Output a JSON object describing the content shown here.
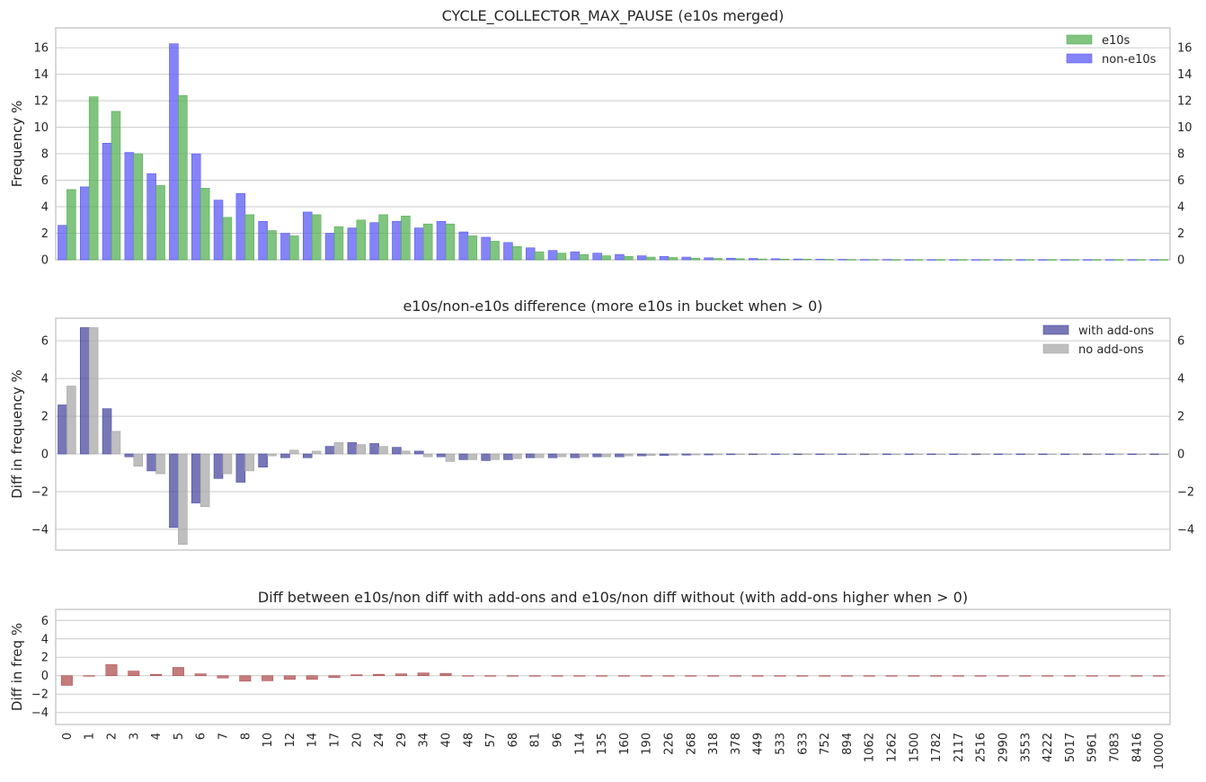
{
  "chart_data": [
    {
      "type": "bar",
      "title": "CYCLE_COLLECTOR_MAX_PAUSE (e10s merged)",
      "xlabel": "",
      "ylabel": "Frequency %",
      "ylim": [
        0,
        17.5
      ],
      "yticks": [
        0,
        2,
        4,
        6,
        8,
        10,
        12,
        14,
        16
      ],
      "grid": true,
      "legend": "top-right",
      "categories": [
        "0",
        "1",
        "2",
        "3",
        "4",
        "5",
        "6",
        "7",
        "8",
        "10",
        "12",
        "14",
        "17",
        "20",
        "24",
        "29",
        "34",
        "40",
        "48",
        "57",
        "68",
        "81",
        "96",
        "114",
        "135",
        "160",
        "190",
        "226",
        "268",
        "318",
        "378",
        "449",
        "533",
        "633",
        "752",
        "894",
        "1062",
        "1262",
        "1500",
        "1782",
        "2117",
        "2516",
        "2990",
        "3553",
        "4222",
        "5017",
        "5961",
        "7083",
        "8416",
        "10000"
      ],
      "series": [
        {
          "name": "non-e10s",
          "color": "#5b5bf5",
          "values": [
            2.6,
            5.5,
            8.8,
            8.1,
            6.5,
            16.3,
            8.0,
            4.5,
            5.0,
            2.9,
            2.0,
            3.6,
            2.0,
            2.4,
            2.8,
            2.9,
            2.4,
            2.9,
            2.1,
            1.7,
            1.3,
            0.9,
            0.7,
            0.6,
            0.5,
            0.4,
            0.3,
            0.25,
            0.2,
            0.15,
            0.12,
            0.1,
            0.08,
            0.06,
            0.04,
            0.03,
            0.02,
            0.02,
            0.01,
            0.01,
            0.01,
            0.01,
            0.01,
            0.01,
            0.01,
            0.01,
            0.01,
            0.01,
            0.01,
            0.01
          ]
        },
        {
          "name": "e10s",
          "color": "#55b055",
          "values": [
            5.3,
            12.3,
            11.2,
            8.0,
            5.6,
            12.4,
            5.4,
            3.2,
            3.4,
            2.2,
            1.8,
            3.4,
            2.5,
            3.0,
            3.4,
            3.3,
            2.7,
            2.7,
            1.8,
            1.4,
            1.0,
            0.6,
            0.5,
            0.4,
            0.3,
            0.25,
            0.2,
            0.17,
            0.12,
            0.1,
            0.08,
            0.06,
            0.05,
            0.04,
            0.03,
            0.02,
            0.02,
            0.01,
            0.01,
            0.01,
            0.01,
            0.01,
            0.01,
            0.01,
            0.01,
            0.01,
            0.01,
            0.01,
            0.01,
            0.01
          ]
        }
      ]
    },
    {
      "type": "bar",
      "title": "e10s/non-e10s difference (more e10s in bucket when > 0)",
      "xlabel": "",
      "ylabel": "Diff in frequency %",
      "ylim": [
        -5.1,
        7.2
      ],
      "yticks": [
        -4,
        -2,
        0,
        2,
        4,
        6
      ],
      "grid": true,
      "legend": "top-right",
      "categories": [
        "0",
        "1",
        "2",
        "3",
        "4",
        "5",
        "6",
        "7",
        "8",
        "10",
        "12",
        "14",
        "17",
        "20",
        "24",
        "29",
        "34",
        "40",
        "48",
        "57",
        "68",
        "81",
        "96",
        "114",
        "135",
        "160",
        "190",
        "226",
        "268",
        "318",
        "378",
        "449",
        "533",
        "633",
        "752",
        "894",
        "1062",
        "1262",
        "1500",
        "1782",
        "2117",
        "2516",
        "2990",
        "3553",
        "4222",
        "5017",
        "5961",
        "7083",
        "8416",
        "10000"
      ],
      "series": [
        {
          "name": "with add-ons",
          "color": "#4a4aa0",
          "values": [
            2.6,
            6.7,
            2.4,
            -0.15,
            -0.9,
            -3.9,
            -2.6,
            -1.3,
            -1.5,
            -0.7,
            -0.2,
            -0.2,
            0.4,
            0.6,
            0.55,
            0.35,
            0.15,
            -0.15,
            -0.3,
            -0.35,
            -0.3,
            -0.2,
            -0.2,
            -0.2,
            -0.15,
            -0.15,
            -0.1,
            -0.08,
            -0.06,
            -0.05,
            -0.04,
            -0.03,
            -0.02,
            -0.02,
            -0.02,
            -0.01,
            -0.01,
            -0.01,
            -0.01,
            -0.01,
            -0.01,
            -0.01,
            -0.01,
            -0.01,
            -0.01,
            -0.01,
            -0.01,
            -0.01,
            -0.01,
            -0.01
          ]
        },
        {
          "name": "no add-ons",
          "color": "#a8a8a8",
          "values": [
            3.6,
            6.7,
            1.2,
            -0.65,
            -1.05,
            -4.8,
            -2.8,
            -1.05,
            -0.9,
            -0.1,
            0.2,
            0.15,
            0.6,
            0.5,
            0.4,
            0.15,
            -0.15,
            -0.4,
            -0.3,
            -0.3,
            -0.25,
            -0.2,
            -0.15,
            -0.15,
            -0.15,
            -0.1,
            -0.08,
            -0.06,
            -0.05,
            -0.04,
            -0.03,
            -0.02,
            -0.02,
            -0.02,
            -0.01,
            -0.01,
            -0.01,
            -0.01,
            -0.01,
            -0.01,
            -0.01,
            -0.01,
            -0.01,
            -0.01,
            -0.01,
            -0.01,
            -0.01,
            -0.01,
            -0.01,
            -0.01
          ]
        }
      ]
    },
    {
      "type": "bar",
      "title": "Diff between e10s/non diff with add-ons and e10s/non diff without (with add-ons higher when > 0)",
      "xlabel": "",
      "ylabel": "Diff in freq %",
      "ylim": [
        -5.3,
        7.2
      ],
      "yticks": [
        -4,
        -2,
        0,
        2,
        4,
        6
      ],
      "grid": true,
      "categories": [
        "0",
        "1",
        "2",
        "3",
        "4",
        "5",
        "6",
        "7",
        "8",
        "10",
        "12",
        "14",
        "17",
        "20",
        "24",
        "29",
        "34",
        "40",
        "48",
        "57",
        "68",
        "81",
        "96",
        "114",
        "135",
        "160",
        "190",
        "226",
        "268",
        "318",
        "378",
        "449",
        "533",
        "633",
        "752",
        "894",
        "1062",
        "1262",
        "1500",
        "1782",
        "2117",
        "2516",
        "2990",
        "3553",
        "4222",
        "5017",
        "5961",
        "7083",
        "8416",
        "10000"
      ],
      "series": [
        {
          "name": "",
          "color": "#b05050",
          "values": [
            -1.05,
            -0.05,
            1.2,
            0.5,
            0.15,
            0.9,
            0.2,
            -0.25,
            -0.6,
            -0.55,
            -0.4,
            -0.4,
            -0.2,
            0.1,
            0.15,
            0.2,
            0.3,
            0.25,
            0.0,
            -0.05,
            -0.05,
            0.0,
            -0.05,
            -0.05,
            -0.04,
            -0.05,
            -0.03,
            -0.02,
            -0.02,
            -0.01,
            -0.01,
            -0.01,
            0.0,
            0.0,
            0.0,
            0.0,
            0.0,
            0.0,
            0.0,
            0.0,
            0.0,
            0.0,
            0.0,
            0.0,
            0.0,
            0.0,
            0.0,
            0.0,
            0.0,
            0.0
          ]
        }
      ]
    }
  ]
}
